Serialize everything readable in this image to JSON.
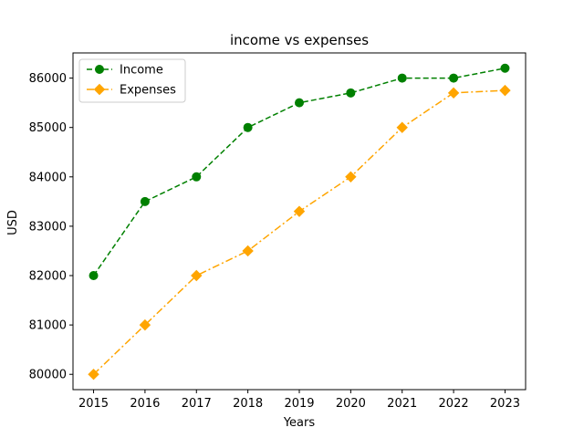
{
  "chart_data": {
    "type": "line",
    "title": "income vs expenses",
    "xlabel": "Years",
    "ylabel": "USD",
    "x": [
      2015,
      2016,
      2017,
      2018,
      2019,
      2020,
      2021,
      2022,
      2023
    ],
    "series": [
      {
        "name": "Income",
        "values": [
          82000,
          83500,
          84000,
          85000,
          85500,
          85700,
          86000,
          86000,
          86200
        ],
        "color": "#008000",
        "line_style": "dashed",
        "marker": "circle"
      },
      {
        "name": "Expenses",
        "values": [
          80000,
          81000,
          82000,
          82500,
          83300,
          84000,
          85000,
          85700,
          85750
        ],
        "color": "#FFA500",
        "line_style": "dash-dot",
        "marker": "diamond"
      }
    ],
    "xticks": [
      "2015",
      "2016",
      "2017",
      "2018",
      "2019",
      "2020",
      "2021",
      "2022",
      "2023"
    ],
    "yticks": [
      "80000",
      "81000",
      "82000",
      "83000",
      "84000",
      "85000",
      "86000"
    ],
    "xlim": [
      2014.6,
      2023.4
    ],
    "ylim": [
      79690,
      86510
    ],
    "grid": false,
    "legend_position": "top-left"
  }
}
